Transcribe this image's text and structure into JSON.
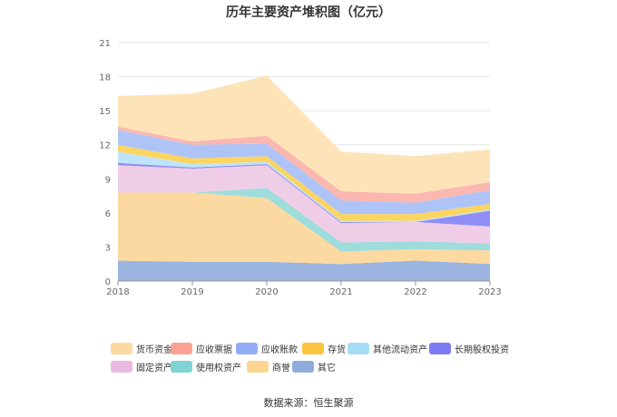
{
  "chart_data": {
    "type": "area",
    "stacked": true,
    "title": "历年主要资产堆积图（亿元）",
    "x": [
      "2018",
      "2019",
      "2020",
      "2021",
      "2022",
      "2023"
    ],
    "ylim": [
      0,
      21
    ],
    "yticks": [
      0,
      3,
      6,
      9,
      12,
      15,
      18,
      21
    ],
    "grid": true,
    "legend_position": "bottom",
    "series": [
      {
        "name": "其它",
        "color": "#9bb4e0",
        "values": [
          1.8,
          1.7,
          1.7,
          1.5,
          1.8,
          1.5
        ]
      },
      {
        "name": "商誉",
        "color": "#fcd9a0",
        "values": [
          6.0,
          6.1,
          5.6,
          1.1,
          1.0,
          1.2
        ]
      },
      {
        "name": "使用权资产",
        "color": "#9fdcdc",
        "values": [
          0.0,
          0.0,
          0.9,
          0.8,
          0.7,
          0.6
        ]
      },
      {
        "name": "固定资产",
        "color": "#f0cde6",
        "values": [
          2.4,
          2.1,
          2.0,
          1.7,
          1.7,
          1.5
        ]
      },
      {
        "name": "长期股权投资",
        "color": "#8f8ef6",
        "values": [
          0.2,
          0.1,
          0.1,
          0.1,
          0.0,
          1.4
        ]
      },
      {
        "name": "其他流动资产",
        "color": "#bfe4f7",
        "values": [
          1.0,
          0.3,
          0.2,
          0.1,
          0.1,
          0.1
        ]
      },
      {
        "name": "存货",
        "color": "#fcd561",
        "values": [
          0.6,
          0.5,
          0.5,
          0.6,
          0.6,
          0.5
        ]
      },
      {
        "name": "应收账款",
        "color": "#aec4f7",
        "values": [
          1.3,
          1.2,
          1.1,
          1.2,
          1.0,
          1.2
        ]
      },
      {
        "name": "应收票据",
        "color": "#fbb7b0",
        "values": [
          0.3,
          0.3,
          0.7,
          0.8,
          0.8,
          0.7
        ]
      },
      {
        "name": "货币资金",
        "color": "#fde4b8",
        "values": [
          2.7,
          4.2,
          5.3,
          3.5,
          3.3,
          2.9
        ]
      }
    ]
  },
  "legend": [
    {
      "label": "货币资金",
      "color": "#fcd9a0"
    },
    {
      "label": "应收票据",
      "color": "#fba295"
    },
    {
      "label": "应收账款",
      "color": "#93acf5"
    },
    {
      "label": "存货",
      "color": "#fbc43c"
    },
    {
      "label": "其他流动资产",
      "color": "#a6ddf6"
    },
    {
      "label": "长期股权投资",
      "color": "#7d7cf3"
    },
    {
      "label": "固定资产",
      "color": "#eab8df"
    },
    {
      "label": "使用权资产",
      "color": "#7fd3d3"
    },
    {
      "label": "商誉",
      "color": "#fcd590"
    },
    {
      "label": "其它",
      "color": "#8eabdc"
    }
  ],
  "source": "数据来源：恒生聚源"
}
